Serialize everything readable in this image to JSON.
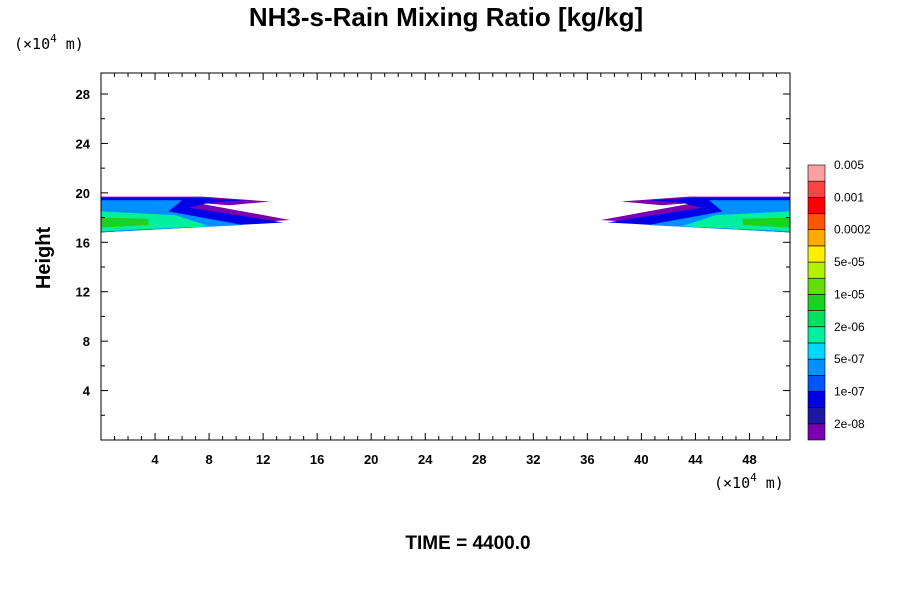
{
  "chart_data": {
    "type": "heatmap",
    "title": "NH3-s-Rain Mixing Ratio [kg/kg]",
    "ylabel": "Height",
    "x_unit": {
      "prefix": "(×10",
      "exp": "4",
      "suffix": " m)"
    },
    "y_unit": {
      "prefix": "(×10",
      "exp": "4",
      "suffix": " m)"
    },
    "x_ticks": [
      4,
      8,
      12,
      16,
      20,
      24,
      28,
      32,
      36,
      40,
      44,
      48
    ],
    "y_ticks": [
      4,
      8,
      12,
      16,
      20,
      24,
      28
    ],
    "xlim": [
      0,
      51
    ],
    "ylim": [
      0,
      29.7
    ],
    "footer": "TIME = 4400.0",
    "colorbar": {
      "colors": [
        "#7a00b0",
        "#1a1aa0",
        "#0000e6",
        "#0055ff",
        "#0090ff",
        "#00d8ff",
        "#00f0a0",
        "#00e060",
        "#20d020",
        "#60e000",
        "#b0f000",
        "#ffee00",
        "#ffaa00",
        "#ff5500",
        "#ff0000",
        "#ff4444",
        "#ffa0a0"
      ],
      "labels": [
        "2e-08",
        "1e-07",
        "5e-07",
        "2e-06",
        "1e-05",
        "5e-05",
        "0.0002",
        "0.001",
        "0.005"
      ]
    },
    "regions": [
      {
        "name": "left-plume",
        "color_index": 0,
        "points": [
          [
            0,
            16.8
          ],
          [
            14.0,
            17.8
          ],
          [
            7.0,
            19.2
          ],
          [
            9.5,
            19.0
          ],
          [
            12.5,
            19.3
          ],
          [
            7.5,
            19.7
          ],
          [
            0,
            19.7
          ]
        ]
      },
      {
        "name": "left-plume",
        "color_index": 2,
        "points": [
          [
            0,
            16.8
          ],
          [
            13.5,
            17.6
          ],
          [
            6.5,
            18.8
          ],
          [
            8.0,
            19.2
          ],
          [
            10.5,
            19.4
          ],
          [
            7.0,
            19.6
          ],
          [
            0,
            19.6
          ]
        ]
      },
      {
        "name": "left-plume",
        "color_index": 4,
        "points": [
          [
            0,
            16.8
          ],
          [
            10.5,
            17.4
          ],
          [
            5.0,
            18.5
          ],
          [
            6.0,
            19.4
          ],
          [
            0,
            19.4
          ]
        ]
      },
      {
        "name": "left-plume",
        "color_index": 6,
        "points": [
          [
            0,
            16.9
          ],
          [
            8.0,
            17.3
          ],
          [
            5.5,
            18.2
          ],
          [
            0,
            18.5
          ]
        ]
      },
      {
        "name": "left-plume",
        "color_index": 8,
        "points": [
          [
            0,
            17.2
          ],
          [
            3.5,
            17.4
          ],
          [
            3.5,
            17.9
          ],
          [
            0,
            18.0
          ]
        ]
      },
      {
        "name": "right-plume",
        "color_index": 0,
        "points": [
          [
            51,
            16.8
          ],
          [
            37.0,
            17.8
          ],
          [
            44.0,
            19.2
          ],
          [
            41.5,
            19.0
          ],
          [
            38.5,
            19.3
          ],
          [
            43.5,
            19.7
          ],
          [
            51,
            19.7
          ]
        ]
      },
      {
        "name": "right-plume",
        "color_index": 2,
        "points": [
          [
            51,
            16.8
          ],
          [
            37.5,
            17.6
          ],
          [
            44.5,
            18.8
          ],
          [
            43.0,
            19.2
          ],
          [
            40.5,
            19.4
          ],
          [
            44.0,
            19.6
          ],
          [
            51,
            19.6
          ]
        ]
      },
      {
        "name": "right-plume",
        "color_index": 4,
        "points": [
          [
            51,
            16.8
          ],
          [
            40.5,
            17.4
          ],
          [
            46.0,
            18.5
          ],
          [
            45.0,
            19.4
          ],
          [
            51,
            19.4
          ]
        ]
      },
      {
        "name": "right-plume",
        "color_index": 6,
        "points": [
          [
            51,
            16.9
          ],
          [
            43.0,
            17.3
          ],
          [
            45.5,
            18.2
          ],
          [
            51,
            18.5
          ]
        ]
      },
      {
        "name": "right-plume",
        "color_index": 8,
        "points": [
          [
            51,
            17.2
          ],
          [
            47.5,
            17.4
          ],
          [
            47.5,
            17.9
          ],
          [
            51,
            18.0
          ]
        ]
      }
    ]
  }
}
